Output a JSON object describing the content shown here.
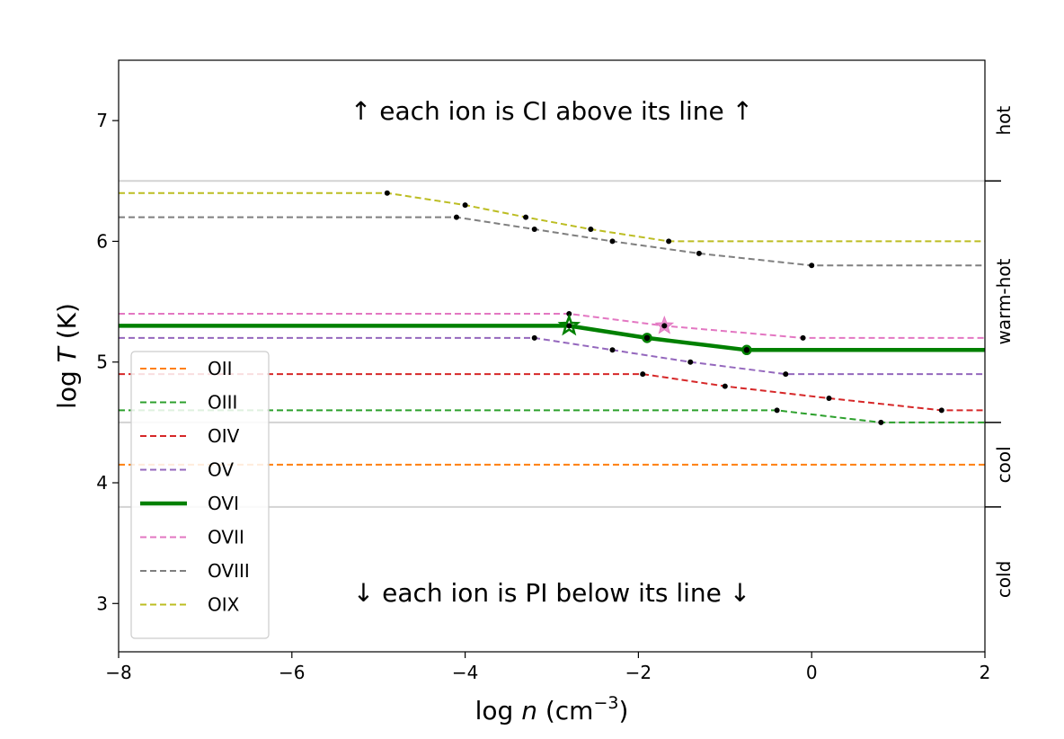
{
  "chart_data": {
    "type": "line",
    "xlabel_prefix": "log ",
    "xlabel_var": "n",
    "xlabel_unit": " (cm",
    "xlabel_exp": "−3",
    "xlabel_close": ")",
    "ylabel_prefix": "log ",
    "ylabel_var": "T",
    "ylabel_unit": " (K)",
    "xlim": [
      -8,
      2
    ],
    "ylim": [
      2.6,
      7.5
    ],
    "xticks": [
      -8,
      -6,
      -4,
      -2,
      0,
      2
    ],
    "xtick_labels": [
      "−8",
      "−6",
      "−4",
      "−2",
      "0",
      "2"
    ],
    "yticks": [
      3,
      4,
      5,
      6,
      7
    ],
    "ytick_labels": [
      "3",
      "4",
      "5",
      "6",
      "7"
    ],
    "grid": false,
    "legend_position": "lower-left",
    "annotations": {
      "top": "↑  each ion is CI above its line  ↑",
      "bottom": "↓  each ion is PI below its line  ↓"
    },
    "band_boundaries": [
      3.8,
      4.5,
      6.5
    ],
    "bands": [
      {
        "label": "hot",
        "range": [
          6.5,
          7.5
        ]
      },
      {
        "label": "warm-hot",
        "range": [
          4.5,
          6.5
        ]
      },
      {
        "label": "cool",
        "range": [
          3.8,
          4.5
        ]
      },
      {
        "label": "cold",
        "range": [
          2.6,
          3.8
        ]
      }
    ],
    "series": [
      {
        "name": "OII",
        "color": "#ff7f0e",
        "style": "dashed",
        "x": [
          -8,
          2
        ],
        "y": [
          4.15,
          4.15
        ],
        "markers": []
      },
      {
        "name": "OIII",
        "color": "#2ca02c",
        "style": "dashed",
        "x": [
          -8,
          -0.4,
          0.8,
          2
        ],
        "y": [
          4.6,
          4.6,
          4.5,
          4.5
        ],
        "markers": [
          [
            -0.4,
            4.6
          ],
          [
            0.8,
            4.5
          ]
        ]
      },
      {
        "name": "OIV",
        "color": "#d62728",
        "style": "dashed",
        "x": [
          -8,
          -1.95,
          -1.0,
          0.2,
          1.5,
          2
        ],
        "y": [
          4.9,
          4.9,
          4.8,
          4.7,
          4.6,
          4.6
        ],
        "markers": [
          [
            -1.95,
            4.9
          ],
          [
            -1.0,
            4.8
          ],
          [
            0.2,
            4.7
          ],
          [
            1.5,
            4.6
          ]
        ]
      },
      {
        "name": "OV",
        "color": "#9467bd",
        "style": "dashed",
        "x": [
          -8,
          -3.2,
          -2.3,
          -1.4,
          -0.3,
          2
        ],
        "y": [
          5.2,
          5.2,
          5.1,
          5.0,
          4.9,
          4.9
        ],
        "markers": [
          [
            -3.2,
            5.2
          ],
          [
            -2.3,
            5.1
          ],
          [
            -1.4,
            5.0
          ],
          [
            -0.3,
            4.9
          ]
        ]
      },
      {
        "name": "OVI",
        "color": "#008000",
        "style": "solid",
        "x": [
          -8,
          -2.8,
          -1.9,
          -0.75,
          2
        ],
        "y": [
          5.3,
          5.3,
          5.2,
          5.1,
          5.1
        ],
        "markers": [
          [
            -1.9,
            5.2
          ],
          [
            -0.75,
            5.1
          ]
        ],
        "star": [
          -2.8,
          5.3
        ]
      },
      {
        "name": "OVII",
        "color": "#e377c2",
        "style": "dashed",
        "x": [
          -8,
          -2.8,
          -1.7,
          -0.1,
          2
        ],
        "y": [
          5.4,
          5.4,
          5.3,
          5.2,
          5.2
        ],
        "markers": [
          [
            -2.8,
            5.4
          ],
          [
            -1.7,
            5.3
          ],
          [
            -0.1,
            5.2
          ]
        ],
        "star": [
          -1.7,
          5.3
        ]
      },
      {
        "name": "OVIII",
        "color": "#7f7f7f",
        "style": "dashed",
        "x": [
          -8,
          -4.1,
          -3.2,
          -2.3,
          -1.3,
          0.0,
          2
        ],
        "y": [
          6.2,
          6.2,
          6.1,
          6.0,
          5.9,
          5.8,
          5.8
        ],
        "markers": [
          [
            -4.1,
            6.2
          ],
          [
            -3.2,
            6.1
          ],
          [
            -2.3,
            6.0
          ],
          [
            -1.3,
            5.9
          ],
          [
            0.0,
            5.8
          ]
        ]
      },
      {
        "name": "OIX",
        "color": "#bcbd22",
        "style": "dashed",
        "x": [
          -8,
          -4.9,
          -4.0,
          -3.3,
          -2.55,
          -1.65,
          2
        ],
        "y": [
          6.4,
          6.4,
          6.3,
          6.2,
          6.1,
          6.0,
          6.0
        ],
        "markers": [
          [
            -4.9,
            6.4
          ],
          [
            -4.0,
            6.3
          ],
          [
            -3.3,
            6.2
          ],
          [
            -2.55,
            6.1
          ],
          [
            -1.65,
            6.0
          ]
        ]
      }
    ]
  }
}
